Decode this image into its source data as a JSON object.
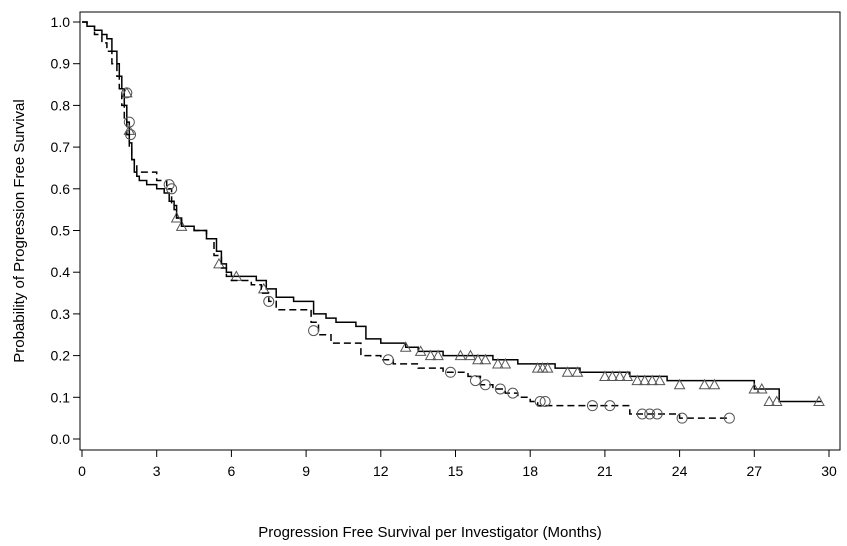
{
  "chart_data": {
    "type": "line",
    "title": "",
    "xlabel": "Progression Free Survival per Investigator (Months)",
    "ylabel": "Probability of Progression Free Survival",
    "xlim": [
      0,
      30
    ],
    "ylim": [
      0.0,
      1.0
    ],
    "xticks": [
      0,
      3,
      6,
      9,
      12,
      15,
      18,
      21,
      24,
      27,
      30
    ],
    "xtick_labels": [
      "0",
      "3",
      "6",
      "9",
      "12",
      "15",
      "18",
      "21",
      "24",
      "27",
      "30"
    ],
    "yticks": [
      0.0,
      0.1,
      0.2,
      0.3,
      0.4,
      0.5,
      0.6,
      0.7,
      0.8,
      0.9,
      1.0
    ],
    "ytick_labels": [
      "0.0",
      "0.1",
      "0.2",
      "0.3",
      "0.4",
      "0.5",
      "0.6",
      "0.7",
      "0.8",
      "0.9",
      "1.0"
    ],
    "grid": false,
    "legend": "none",
    "step": true,
    "series": [
      {
        "line_style": "solid",
        "censor_marker": "triangle",
        "color": "#000000",
        "x": [
          0,
          0.2,
          0.5,
          0.8,
          1.0,
          1.2,
          1.4,
          1.5,
          1.6,
          1.7,
          1.8,
          1.9,
          2.0,
          2.1,
          2.2,
          2.3,
          2.6,
          3.0,
          3.3,
          3.5,
          3.7,
          3.8,
          4.0,
          4.5,
          5.0,
          5.4,
          5.6,
          5.8,
          6.0,
          6.5,
          7.0,
          7.4,
          7.8,
          8.5,
          9.3,
          9.8,
          10.2,
          11.0,
          11.4,
          12.0,
          13.0,
          13.5,
          14.5,
          15.5,
          16.5,
          17.5,
          18.0,
          19.0,
          20.0,
          21.0,
          22.0,
          22.5,
          23.5,
          24.5,
          26.5,
          27.0,
          27.5,
          28.0,
          29.7
        ],
        "y": [
          1.0,
          0.99,
          0.98,
          0.97,
          0.96,
          0.93,
          0.9,
          0.87,
          0.84,
          0.8,
          0.76,
          0.71,
          0.67,
          0.64,
          0.63,
          0.62,
          0.61,
          0.6,
          0.59,
          0.57,
          0.55,
          0.53,
          0.51,
          0.5,
          0.48,
          0.45,
          0.42,
          0.4,
          0.39,
          0.39,
          0.38,
          0.36,
          0.34,
          0.33,
          0.3,
          0.29,
          0.28,
          0.27,
          0.24,
          0.23,
          0.22,
          0.21,
          0.2,
          0.2,
          0.19,
          0.18,
          0.18,
          0.17,
          0.16,
          0.16,
          0.15,
          0.15,
          0.14,
          0.14,
          0.14,
          0.12,
          0.12,
          0.09,
          0.09
        ],
        "censored": [
          [
            1.8,
            0.83
          ],
          [
            1.9,
            0.74
          ],
          [
            3.8,
            0.53
          ],
          [
            4.0,
            0.51
          ],
          [
            5.5,
            0.42
          ],
          [
            6.2,
            0.39
          ],
          [
            7.3,
            0.36
          ],
          [
            13.0,
            0.22
          ],
          [
            13.6,
            0.21
          ],
          [
            14.0,
            0.2
          ],
          [
            14.3,
            0.2
          ],
          [
            15.2,
            0.2
          ],
          [
            15.6,
            0.2
          ],
          [
            15.9,
            0.19
          ],
          [
            16.2,
            0.19
          ],
          [
            16.7,
            0.18
          ],
          [
            17.0,
            0.18
          ],
          [
            18.3,
            0.17
          ],
          [
            18.5,
            0.17
          ],
          [
            18.7,
            0.17
          ],
          [
            19.5,
            0.16
          ],
          [
            19.9,
            0.16
          ],
          [
            21.0,
            0.15
          ],
          [
            21.3,
            0.15
          ],
          [
            21.6,
            0.15
          ],
          [
            21.9,
            0.15
          ],
          [
            22.3,
            0.14
          ],
          [
            22.6,
            0.14
          ],
          [
            22.9,
            0.14
          ],
          [
            23.2,
            0.14
          ],
          [
            24.0,
            0.13
          ],
          [
            25.0,
            0.13
          ],
          [
            25.4,
            0.13
          ],
          [
            27.0,
            0.12
          ],
          [
            27.3,
            0.12
          ],
          [
            27.6,
            0.09
          ],
          [
            27.9,
            0.09
          ],
          [
            29.6,
            0.09
          ]
        ]
      },
      {
        "line_style": "dashed",
        "censor_marker": "circle",
        "color": "#000000",
        "x": [
          0,
          0.2,
          0.5,
          0.8,
          1.0,
          1.2,
          1.4,
          1.5,
          1.6,
          1.7,
          1.8,
          1.9,
          2.0,
          2.1,
          2.2,
          3.0,
          3.4,
          3.6,
          3.8,
          4.0,
          4.5,
          5.0,
          5.3,
          5.6,
          5.8,
          6.0,
          6.8,
          7.2,
          7.5,
          7.8,
          8.8,
          9.2,
          9.5,
          10.0,
          11.2,
          12.0,
          12.5,
          13.5,
          14.5,
          15.5,
          16.0,
          16.5,
          17.0,
          17.5,
          18.0,
          18.3,
          20.0,
          21.5,
          22.0,
          23.0,
          24.0,
          26.0
        ],
        "y": [
          1.0,
          0.99,
          0.97,
          0.95,
          0.93,
          0.9,
          0.87,
          0.84,
          0.8,
          0.77,
          0.73,
          0.7,
          0.67,
          0.66,
          0.64,
          0.62,
          0.6,
          0.56,
          0.53,
          0.51,
          0.5,
          0.48,
          0.44,
          0.41,
          0.39,
          0.38,
          0.37,
          0.35,
          0.33,
          0.31,
          0.31,
          0.28,
          0.25,
          0.23,
          0.2,
          0.19,
          0.18,
          0.17,
          0.16,
          0.15,
          0.13,
          0.12,
          0.11,
          0.1,
          0.09,
          0.08,
          0.08,
          0.08,
          0.06,
          0.06,
          0.05,
          0.05
        ],
        "censored": [
          [
            1.8,
            0.83
          ],
          [
            1.9,
            0.76
          ],
          [
            1.95,
            0.73
          ],
          [
            3.5,
            0.61
          ],
          [
            3.6,
            0.6
          ],
          [
            7.5,
            0.33
          ],
          [
            9.3,
            0.26
          ],
          [
            12.3,
            0.19
          ],
          [
            14.8,
            0.16
          ],
          [
            15.8,
            0.14
          ],
          [
            16.2,
            0.13
          ],
          [
            16.8,
            0.12
          ],
          [
            17.3,
            0.11
          ],
          [
            18.4,
            0.09
          ],
          [
            18.6,
            0.09
          ],
          [
            20.5,
            0.08
          ],
          [
            21.2,
            0.08
          ],
          [
            22.5,
            0.06
          ],
          [
            22.8,
            0.06
          ],
          [
            23.1,
            0.06
          ],
          [
            24.1,
            0.05
          ],
          [
            26.0,
            0.05
          ]
        ]
      }
    ]
  }
}
